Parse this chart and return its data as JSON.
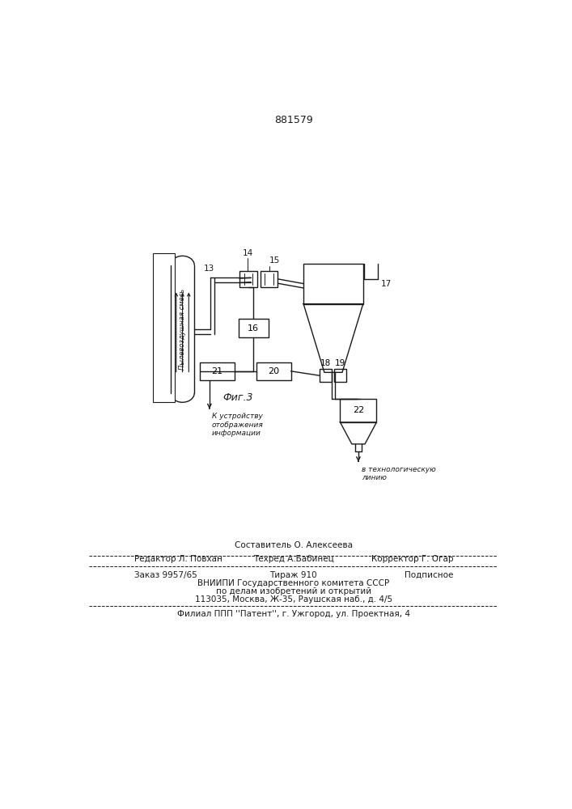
{
  "patent_number": "881579",
  "fig_label": "Фиг.3",
  "background_color": "#ffffff",
  "line_color": "#1a1a1a",
  "pipe_label": "Пылевоздушная смесь",
  "info_label": "К устройству\nотображения\nинформации",
  "tech_label": "в технологическую\nлинию",
  "footer_line0": "Составитель О. Алексеева",
  "footer_line1_left": "Редактор Л. Повхан",
  "footer_line1_mid": "Техред А.Бабинец",
  "footer_line1_right": "Корректор Г. Огар",
  "footer_line2_left": "Заказ 9957/65",
  "footer_line2_mid": "Тираж 910",
  "footer_line2_right": "Подписное",
  "footer_line3": "ВНИИПИ Государственного комитета СССР",
  "footer_line4": "по делам изобретений и открытий",
  "footer_line5": "113035, Москва, Ж-35, Раушская наб., д. 4/5",
  "footer_line6": "Филиал ППП ''Патент'', г. Ужгород, ул. Проектная, 4"
}
